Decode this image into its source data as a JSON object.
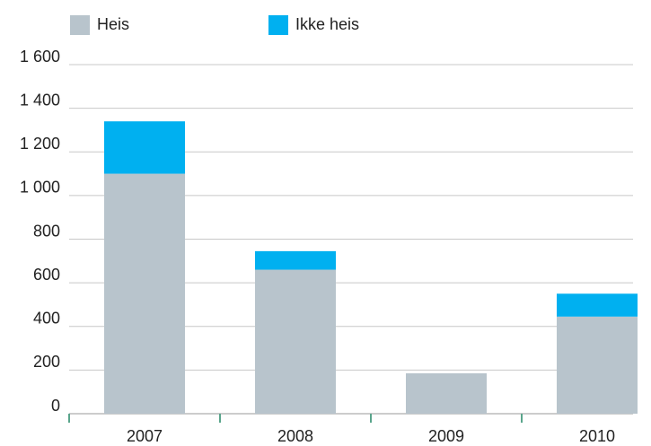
{
  "chart_data": {
    "type": "stacked_bar",
    "categories": [
      "2007",
      "2008",
      "2009",
      "2010"
    ],
    "series": [
      {
        "name": "Heis",
        "color": "#b8c4cc",
        "values": [
          1100,
          660,
          185,
          445
        ]
      },
      {
        "name": "Ikke heis",
        "color": "#00b0f0",
        "values": [
          240,
          85,
          0,
          105
        ]
      }
    ],
    "ylim": [
      0,
      1600
    ],
    "yticks": [
      0,
      200,
      400,
      600,
      800,
      {
        "value": 1000,
        "label": "1 000"
      },
      {
        "value": 1200,
        "label": "1 200"
      },
      {
        "value": 1400,
        "label": "1 400"
      },
      {
        "value": 1600,
        "label": "1 600"
      }
    ],
    "grid": true,
    "legend": "top"
  }
}
